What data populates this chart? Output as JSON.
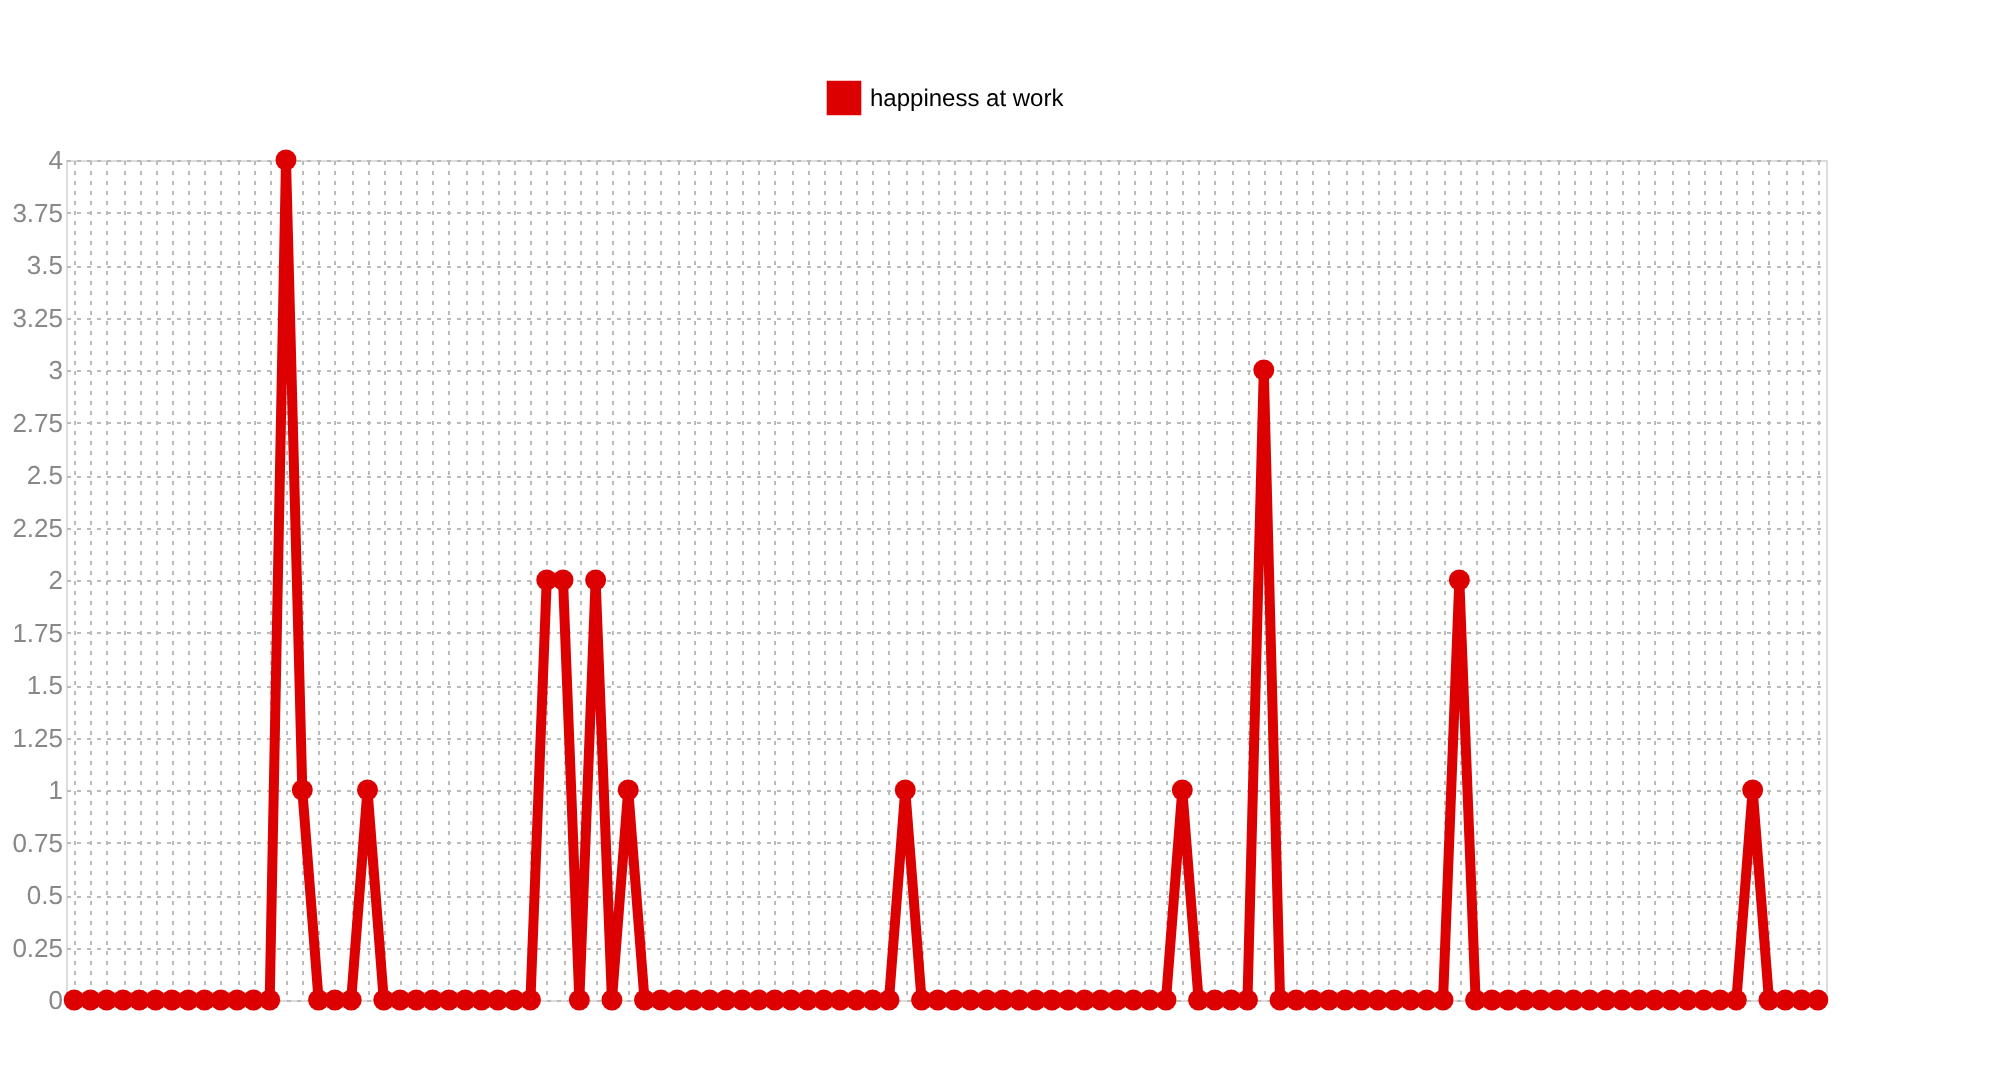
{
  "chart_data": {
    "type": "line",
    "categories": [
      null,
      null,
      null,
      null,
      null,
      null,
      null,
      null,
      null,
      null,
      null,
      null,
      null,
      null,
      null,
      null,
      null,
      null,
      null,
      null,
      null,
      null,
      null,
      null,
      null,
      null,
      null,
      null,
      null,
      null,
      null,
      null,
      null,
      null,
      null,
      null,
      null,
      null,
      null,
      null,
      null,
      null,
      null,
      null,
      null,
      null,
      null,
      null,
      null,
      null,
      null,
      null,
      null,
      null,
      null,
      null,
      null,
      null,
      null,
      null,
      null,
      null,
      null,
      null,
      null,
      null,
      null,
      null,
      null,
      null,
      null,
      null,
      null,
      null,
      null,
      null,
      null,
      null,
      null,
      null,
      null,
      null,
      null,
      null,
      null,
      null,
      null,
      null,
      null,
      null,
      null,
      null,
      null,
      null,
      null,
      null,
      null,
      null,
      null,
      null,
      null,
      null,
      null,
      null,
      null,
      null,
      null,
      null
    ],
    "series": [
      {
        "name": "happiness at work",
        "color": "#dd0000",
        "values": [
          0,
          0,
          0,
          0,
          0,
          0,
          0,
          0,
          0,
          0,
          0,
          0,
          0,
          4,
          1,
          0,
          0,
          0,
          1,
          0,
          0,
          0,
          0,
          0,
          0,
          0,
          0,
          0,
          0,
          2,
          2,
          0,
          2,
          0,
          1,
          0,
          0,
          0,
          0,
          0,
          0,
          0,
          0,
          0,
          0,
          0,
          0,
          0,
          0,
          0,
          0,
          1,
          0,
          0,
          0,
          0,
          0,
          0,
          0,
          0,
          0,
          0,
          0,
          0,
          0,
          0,
          0,
          0,
          1,
          0,
          0,
          0,
          0,
          3,
          0,
          0,
          0,
          0,
          0,
          0,
          0,
          0,
          0,
          0,
          0,
          2,
          0,
          0,
          0,
          0,
          0,
          0,
          0,
          0,
          0,
          0,
          0,
          0,
          0,
          0,
          0,
          0,
          0,
          1,
          0,
          0,
          0,
          0
        ]
      }
    ],
    "ylim": [
      0,
      4
    ],
    "yticks": [
      0,
      0.25,
      0.5,
      0.75,
      1,
      1.25,
      1.5,
      1.75,
      2,
      2.25,
      2.5,
      2.75,
      3,
      3.25,
      3.5,
      3.75,
      4
    ],
    "grid": true,
    "legend": "top",
    "marker": "circle",
    "line_style": "solid"
  }
}
